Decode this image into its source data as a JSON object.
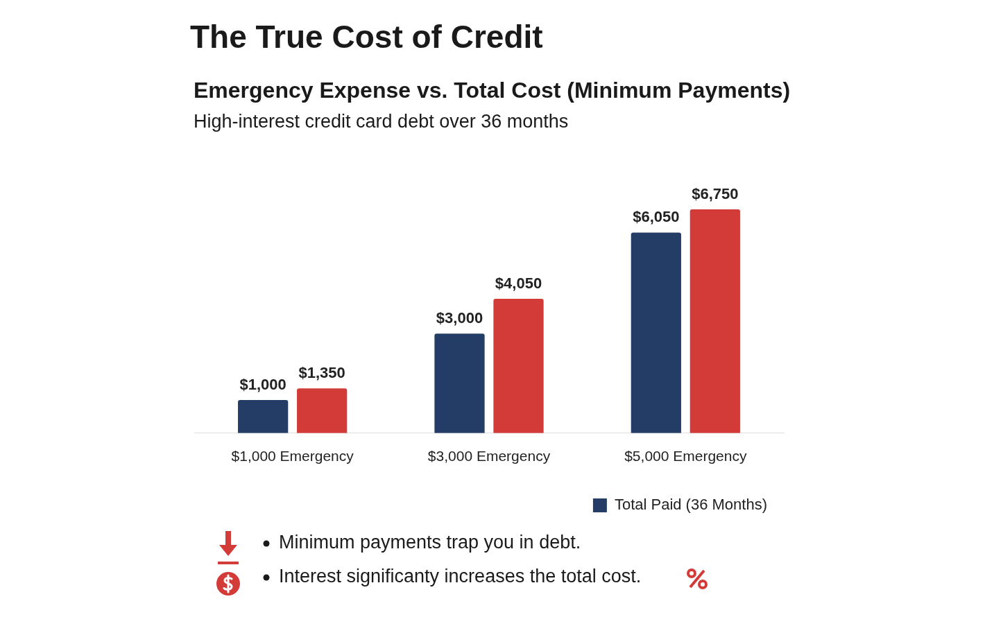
{
  "chart_data": {
    "type": "bar",
    "title": "The True Cost of Credit",
    "subtitle": "Emergency Expense vs. Total Cost (Minimum Payments)",
    "categories": [
      "$1,000 Emergency",
      "$3,000 Emergency",
      "$5,000 Emergency"
    ],
    "series": [
      {
        "name": "Total Paid (36 Months)",
        "color": "#233d66",
        "values": [
          1000,
          3000,
          6050
        ],
        "value_labels": [
          "$1,000",
          "$3,000",
          "$6,050"
        ]
      },
      {
        "color": "#d23b38",
        "values": [
          1350,
          4050,
          6750
        ],
        "value_labels": [
          "$1,350",
          "$4,050",
          "$6,750"
        ]
      }
    ],
    "legend": "bottom right",
    "grid": false,
    "tick_labels": "x",
    "annotations": [
      "High-interest credit card debt over 36 months",
      "Minimum payments trap you in debt.",
      "Interest significanty increases the total cost."
    ]
  }
}
